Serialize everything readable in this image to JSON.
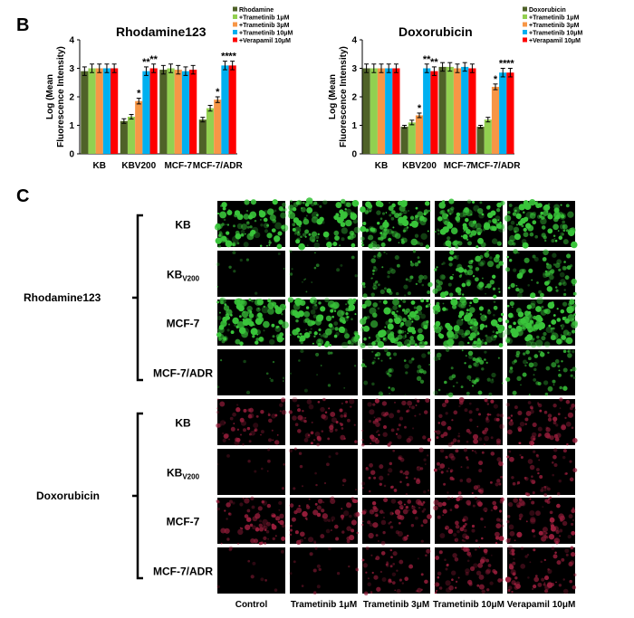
{
  "panel_b_label": "B",
  "panel_c_label": "C",
  "chart_data": [
    {
      "type": "bar",
      "title": "Rhodamine123",
      "ylabel": "Log (Mean Fluorescence Intensity)",
      "ylabel_lines": [
        "Log (Mean",
        "Fluorescence Intensity)"
      ],
      "ylim": [
        0,
        4
      ],
      "yticks": [
        "0",
        "1",
        "2",
        "3",
        "4"
      ],
      "grid": false,
      "legend_position": "top-right",
      "categories": [
        "KB",
        "KBV200",
        "MCF-7",
        "MCF-7/ADR"
      ],
      "series": [
        {
          "name": "Rhodamine",
          "color": "#4f6228",
          "values": [
            2.9,
            1.15,
            2.95,
            1.2
          ],
          "errors": [
            0.15,
            0.08,
            0.15,
            0.08
          ],
          "marks": [
            "",
            "",
            "",
            ""
          ]
        },
        {
          "name": "+Trametinib 1μM",
          "color": "#92d050",
          "values": [
            3.0,
            1.3,
            3.0,
            1.6
          ],
          "errors": [
            0.15,
            0.08,
            0.15,
            0.1
          ],
          "marks": [
            "",
            "",
            "",
            ""
          ]
        },
        {
          "name": "+Trametinib 3μM",
          "color": "#f79646",
          "values": [
            3.0,
            1.85,
            2.95,
            1.9
          ],
          "errors": [
            0.15,
            0.1,
            0.15,
            0.1
          ],
          "marks": [
            "",
            "*",
            "",
            "*"
          ]
        },
        {
          "name": "+Trametinib 10μM",
          "color": "#00b0f0",
          "values": [
            3.0,
            2.9,
            2.9,
            3.1
          ],
          "errors": [
            0.15,
            0.15,
            0.15,
            0.15
          ],
          "marks": [
            "",
            "**",
            "",
            "**"
          ]
        },
        {
          "name": "+Verapamil 10μM",
          "color": "#ff0000",
          "values": [
            3.0,
            3.0,
            2.95,
            3.1
          ],
          "errors": [
            0.15,
            0.15,
            0.15,
            0.15
          ],
          "marks": [
            "",
            "**",
            "",
            "**"
          ]
        }
      ]
    },
    {
      "type": "bar",
      "title": "Doxorubicin",
      "ylabel": "Log (Mean Fluorescence Intensity)",
      "ylabel_lines": [
        "Log (Mean",
        "Fluorescence Intensity)"
      ],
      "ylim": [
        0,
        4
      ],
      "yticks": [
        "0",
        "1",
        "2",
        "3",
        "4"
      ],
      "grid": false,
      "legend_position": "top-right",
      "categories": [
        "KB",
        "KBV200",
        "MCF-7",
        "MCF-7/ADR"
      ],
      "series": [
        {
          "name": "Doxorubicin",
          "color": "#4f6228",
          "values": [
            3.0,
            0.95,
            3.05,
            0.95
          ],
          "errors": [
            0.15,
            0.05,
            0.15,
            0.05
          ],
          "marks": [
            "",
            "",
            "",
            ""
          ]
        },
        {
          "name": "+Trametinib 1μM",
          "color": "#92d050",
          "values": [
            3.0,
            1.1,
            3.05,
            1.2
          ],
          "errors": [
            0.15,
            0.08,
            0.15,
            0.08
          ],
          "marks": [
            "",
            "",
            "",
            ""
          ]
        },
        {
          "name": "+Trametinib 3μM",
          "color": "#f79646",
          "values": [
            3.0,
            1.35,
            3.0,
            2.35
          ],
          "errors": [
            0.15,
            0.08,
            0.15,
            0.1
          ],
          "marks": [
            "",
            "*",
            "",
            "*"
          ]
        },
        {
          "name": "+Trametinib 10μM",
          "color": "#00b0f0",
          "values": [
            3.0,
            3.0,
            3.05,
            2.85
          ],
          "errors": [
            0.15,
            0.15,
            0.15,
            0.15
          ],
          "marks": [
            "",
            "**",
            "",
            "**"
          ]
        },
        {
          "name": "+Verapamil 10μM",
          "color": "#ff0000",
          "values": [
            3.0,
            2.9,
            3.0,
            2.85
          ],
          "errors": [
            0.15,
            0.15,
            0.15,
            0.15
          ],
          "marks": [
            "",
            "**",
            "",
            "**"
          ]
        }
      ]
    }
  ],
  "micrographs": {
    "columns": [
      "Control",
      "Trametinib 1μM",
      "Trametinib 3μM",
      "Trametinib 10μM",
      "Verapamil 10μM"
    ],
    "groups": [
      {
        "name": "Rhodamine123",
        "color": "#39c43a",
        "rows": [
          {
            "label": "KB",
            "sub": "",
            "intensity": [
              0.9,
              0.9,
              0.9,
              0.9,
              0.9
            ]
          },
          {
            "label": "KB",
            "sub": "V200",
            "intensity": [
              0.05,
              0.1,
              0.45,
              0.7,
              0.6
            ]
          },
          {
            "label": "MCF-7",
            "sub": "",
            "intensity": [
              1.0,
              1.0,
              1.0,
              1.0,
              1.0
            ]
          },
          {
            "label": "MCF-7/ADR",
            "sub": "",
            "intensity": [
              0.05,
              0.08,
              0.35,
              0.4,
              0.45
            ]
          }
        ]
      },
      {
        "name": "Doxorubicin",
        "color": "#9a1e3c",
        "rows": [
          {
            "label": "KB",
            "sub": "",
            "intensity": [
              0.5,
              0.5,
              0.5,
              0.5,
              0.55
            ]
          },
          {
            "label": "KB",
            "sub": "V200",
            "intensity": [
              0.05,
              0.1,
              0.35,
              0.4,
              0.4
            ]
          },
          {
            "label": "MCF-7",
            "sub": "",
            "intensity": [
              0.6,
              0.55,
              0.55,
              0.55,
              0.6
            ]
          },
          {
            "label": "MCF-7/ADR",
            "sub": "",
            "intensity": [
              0.05,
              0.1,
              0.4,
              0.5,
              0.55
            ]
          }
        ]
      }
    ]
  }
}
